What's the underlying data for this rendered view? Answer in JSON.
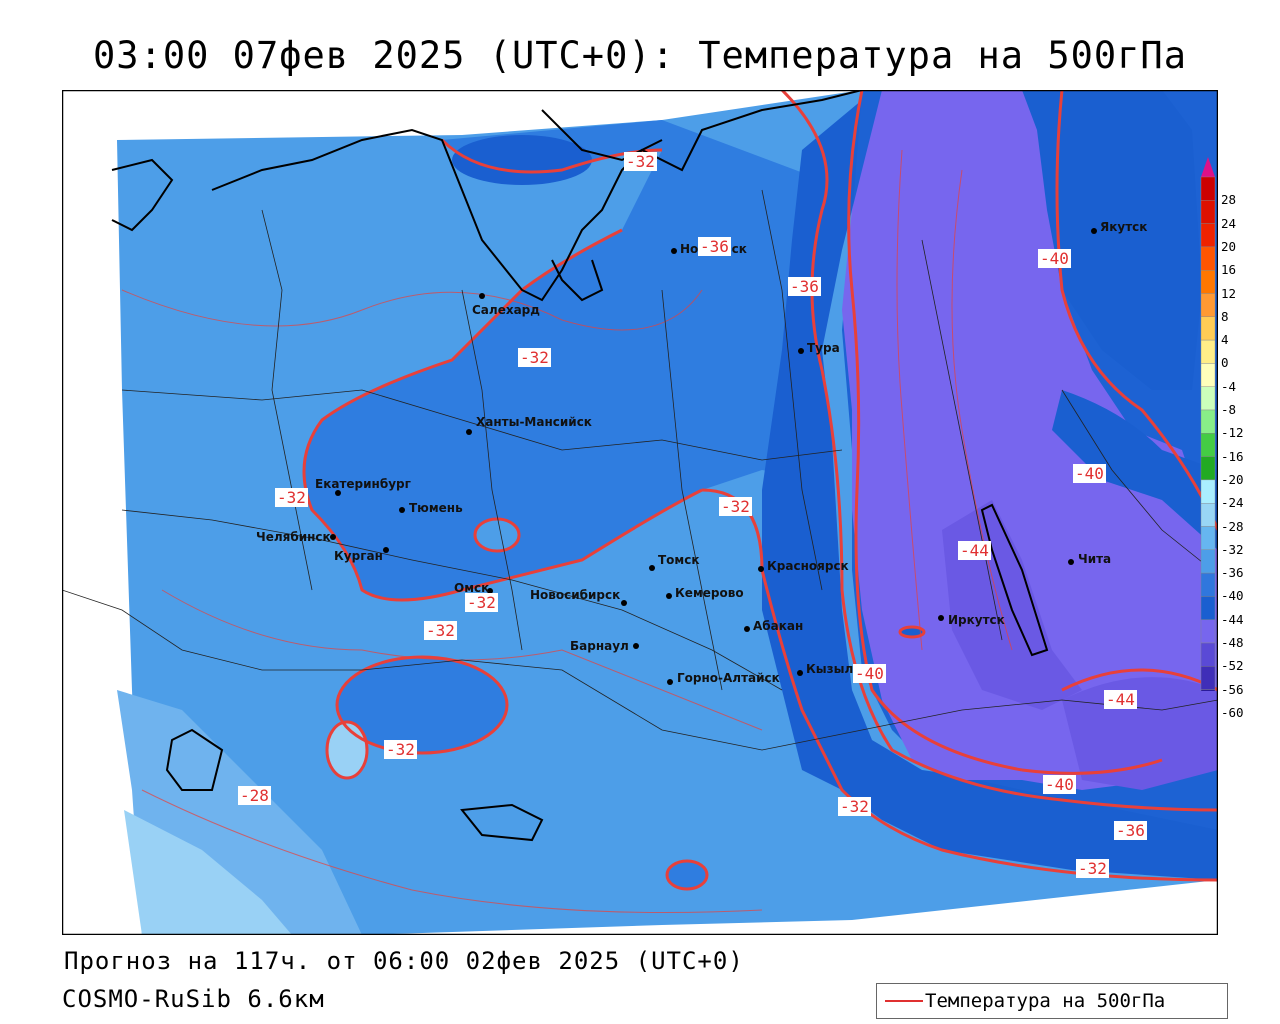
{
  "header": {
    "title": "03:00 07фев 2025 (UTC+0): Температура на 500гПа"
  },
  "footer": {
    "forecast": "Прогноз на 117ч. от 06:00 02фев 2025 (UTC+0)",
    "model": "COSMO-RuSib 6.6км"
  },
  "legend": {
    "label": "Температура на 500гПа",
    "color": "#e03030"
  },
  "colorbar": {
    "labels": [
      "28",
      "24",
      "20",
      "16",
      "12",
      "8",
      "4",
      "0",
      "-4",
      "-8",
      "-12",
      "-16",
      "-20",
      "-24",
      "-28",
      "-32",
      "-36",
      "-40",
      "-44",
      "-48",
      "-52",
      "-56",
      "-60"
    ],
    "colors": [
      "#cc0000",
      "#dd1100",
      "#ee2200",
      "#ff5500",
      "#ff7700",
      "#ff9933",
      "#ffcc55",
      "#ffee88",
      "#ffffbb",
      "#ccffbb",
      "#88ee88",
      "#44cc44",
      "#22aa22",
      "#aaeeff",
      "#99d6f5",
      "#66b6f0",
      "#4d9ee8",
      "#3077dd",
      "#1a5fd0",
      "#7766ee",
      "#5a4ad6",
      "#3f2eb8",
      "#2a1a99",
      "#1a0f77"
    ]
  },
  "cities": [
    {
      "name": "Норильск"
    },
    {
      "name": "Якутск"
    },
    {
      "name": "Салехард"
    },
    {
      "name": "Тура"
    },
    {
      "name": "Ханты-Мансийск"
    },
    {
      "name": "Екатеринбург"
    },
    {
      "name": "Тюмень"
    },
    {
      "name": "Челябинск"
    },
    {
      "name": "Курган"
    },
    {
      "name": "Омск"
    },
    {
      "name": "Томск"
    },
    {
      "name": "Красноярск"
    },
    {
      "name": "Кемерово"
    },
    {
      "name": "Новосибирск"
    },
    {
      "name": "Абакан"
    },
    {
      "name": "Барнаул"
    },
    {
      "name": "Горно-Алтайск"
    },
    {
      "name": "Кызыл"
    },
    {
      "name": "Иркутск"
    },
    {
      "name": "Чита"
    }
  ],
  "contour_labels": [
    "-32",
    "-36",
    "-36",
    "-40",
    "-32",
    "-40",
    "-32",
    "-44",
    "-32",
    "-32",
    "-32",
    "-40",
    "-32",
    "-44",
    "-28",
    "-40",
    "-32",
    "-36",
    "-32"
  ]
}
